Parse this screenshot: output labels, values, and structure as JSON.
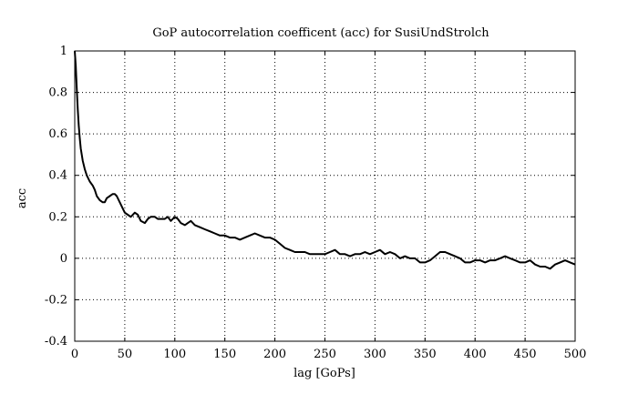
{
  "chart_data": {
    "type": "line",
    "title": "GoP autocorrelation coefficent (acc) for SusiUndStrolch",
    "xlabel": "lag [GoPs]",
    "ylabel": "acc",
    "xlim": [
      0,
      500
    ],
    "ylim": [
      -0.4,
      1
    ],
    "xticks": [
      0,
      50,
      100,
      150,
      200,
      250,
      300,
      350,
      400,
      450,
      500
    ],
    "yticks": [
      -0.4,
      -0.2,
      0,
      0.2,
      0.4,
      0.6,
      0.8,
      1
    ],
    "ytick_labels": [
      "-0.4",
      "-0.2",
      "0",
      "0.2",
      "0.4",
      "0.6",
      "0.8",
      "1"
    ],
    "grid": true,
    "series": [
      {
        "color": "#000000",
        "x": [
          0,
          1,
          2,
          3,
          4,
          5,
          6,
          8,
          10,
          12,
          15,
          18,
          20,
          22,
          25,
          28,
          30,
          32,
          35,
          38,
          40,
          42,
          45,
          48,
          50,
          53,
          56,
          60,
          63,
          66,
          70,
          73,
          76,
          80,
          83,
          86,
          90,
          93,
          96,
          100,
          103,
          106,
          110,
          113,
          116,
          120,
          125,
          130,
          135,
          140,
          145,
          150,
          155,
          160,
          165,
          170,
          175,
          180,
          185,
          190,
          195,
          200,
          205,
          210,
          215,
          220,
          225,
          230,
          235,
          240,
          245,
          250,
          255,
          260,
          265,
          270,
          275,
          280,
          285,
          290,
          295,
          300,
          305,
          310,
          315,
          320,
          325,
          330,
          335,
          340,
          345,
          350,
          355,
          360,
          365,
          370,
          375,
          380,
          385,
          390,
          395,
          400,
          405,
          410,
          415,
          420,
          425,
          430,
          435,
          440,
          445,
          450,
          455,
          460,
          465,
          470,
          475,
          480,
          485,
          490,
          495,
          500
        ],
        "y": [
          1.0,
          0.93,
          0.82,
          0.72,
          0.64,
          0.58,
          0.53,
          0.47,
          0.43,
          0.4,
          0.37,
          0.35,
          0.33,
          0.3,
          0.28,
          0.27,
          0.27,
          0.29,
          0.3,
          0.31,
          0.31,
          0.3,
          0.27,
          0.24,
          0.22,
          0.21,
          0.2,
          0.22,
          0.21,
          0.18,
          0.17,
          0.19,
          0.2,
          0.2,
          0.19,
          0.19,
          0.19,
          0.2,
          0.18,
          0.2,
          0.19,
          0.17,
          0.16,
          0.17,
          0.18,
          0.16,
          0.15,
          0.14,
          0.13,
          0.12,
          0.11,
          0.11,
          0.1,
          0.1,
          0.09,
          0.1,
          0.11,
          0.12,
          0.11,
          0.1,
          0.1,
          0.09,
          0.07,
          0.05,
          0.04,
          0.03,
          0.03,
          0.03,
          0.02,
          0.02,
          0.02,
          0.02,
          0.03,
          0.04,
          0.02,
          0.02,
          0.01,
          0.02,
          0.02,
          0.03,
          0.02,
          0.03,
          0.04,
          0.02,
          0.03,
          0.02,
          0.0,
          0.01,
          0.0,
          0.0,
          -0.02,
          -0.02,
          -0.01,
          0.01,
          0.03,
          0.03,
          0.02,
          0.01,
          0.0,
          -0.02,
          -0.02,
          -0.01,
          -0.01,
          -0.02,
          -0.01,
          -0.01,
          0.0,
          0.01,
          0.0,
          -0.01,
          -0.02,
          -0.02,
          -0.01,
          -0.03,
          -0.04,
          -0.04,
          -0.05,
          -0.03,
          -0.02,
          -0.01,
          -0.02,
          -0.03
        ]
      }
    ]
  }
}
